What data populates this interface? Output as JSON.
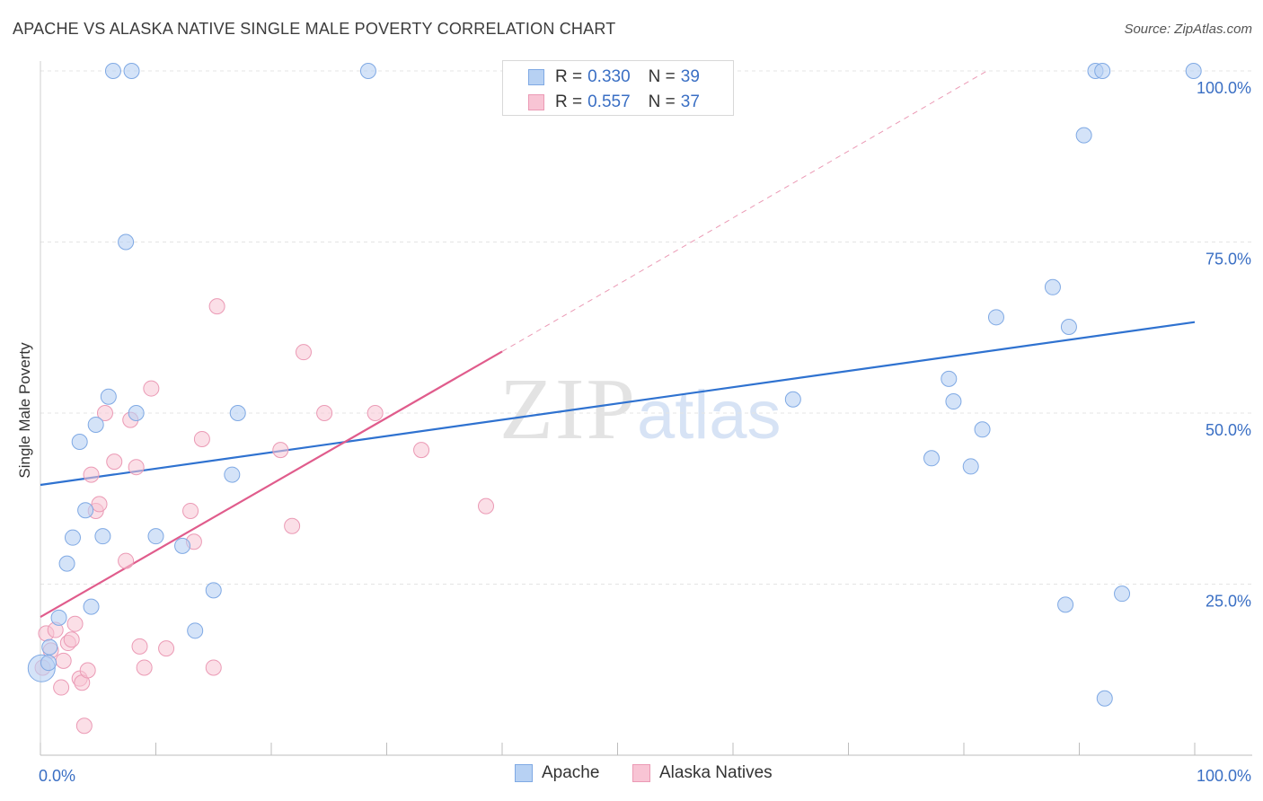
{
  "header": {
    "title": "APACHE VS ALASKA NATIVE SINGLE MALE POVERTY CORRELATION CHART",
    "source": "Source: ZipAtlas.com"
  },
  "watermark": {
    "zip": "ZIP",
    "atlas": "atlas"
  },
  "legend": {
    "apache": {
      "r_label": "R =",
      "r_value": "0.330",
      "n_label": "N =",
      "n_value": "39"
    },
    "alaska": {
      "r_label": "R =",
      "r_value": "0.557",
      "n_label": "N =",
      "n_value": "37"
    }
  },
  "bottom_legend": {
    "apache": "Apache",
    "alaska": "Alaska Natives"
  },
  "colors": {
    "apache_fill": "#b7d1f3",
    "apache_stroke": "#7fa9e4",
    "apache_line": "#2f72d0",
    "alaska_fill": "#f8c4d4",
    "alaska_stroke": "#eb9ab5",
    "alaska_line": "#e05c8c",
    "tick_label": "#3a6fc4",
    "grid": "#e4e4e4"
  },
  "chart_data": {
    "type": "scatter",
    "title": "APACHE VS ALASKA NATIVE SINGLE MALE POVERTY CORRELATION CHART",
    "xlabel": "",
    "ylabel": "Single Male Poverty",
    "xlim": [
      0,
      100
    ],
    "ylim": [
      0,
      100
    ],
    "x_tick_labels": [
      "0.0%",
      "100.0%"
    ],
    "y_ticks": [
      25,
      50,
      75,
      100
    ],
    "y_tick_labels": [
      "25.0%",
      "50.0%",
      "75.0%",
      "100.0%"
    ],
    "grid": true,
    "legend_position": "top-center",
    "series": [
      {
        "name": "Apache",
        "r": 0.33,
        "n": 39,
        "trend": {
          "x": [
            0,
            100
          ],
          "y": [
            39.5,
            63.3
          ]
        },
        "points": [
          {
            "x": 0.1,
            "y": 12.7,
            "big": true
          },
          {
            "x": 0.8,
            "y": 15.8
          },
          {
            "x": 1.6,
            "y": 20.1
          },
          {
            "x": 2.3,
            "y": 28.0
          },
          {
            "x": 2.8,
            "y": 31.8
          },
          {
            "x": 3.4,
            "y": 45.8
          },
          {
            "x": 3.9,
            "y": 35.8
          },
          {
            "x": 4.4,
            "y": 21.7
          },
          {
            "x": 4.8,
            "y": 48.3
          },
          {
            "x": 5.4,
            "y": 32.0
          },
          {
            "x": 5.9,
            "y": 52.4
          },
          {
            "x": 6.3,
            "y": 100.0
          },
          {
            "x": 7.4,
            "y": 75.0
          },
          {
            "x": 7.9,
            "y": 100.0
          },
          {
            "x": 8.3,
            "y": 50.0
          },
          {
            "x": 10.0,
            "y": 32.0
          },
          {
            "x": 12.3,
            "y": 30.6
          },
          {
            "x": 13.4,
            "y": 18.2
          },
          {
            "x": 15.0,
            "y": 24.1
          },
          {
            "x": 16.6,
            "y": 41.0
          },
          {
            "x": 17.1,
            "y": 50.0
          },
          {
            "x": 28.4,
            "y": 100.0
          },
          {
            "x": 65.2,
            "y": 52.0
          },
          {
            "x": 77.2,
            "y": 43.4
          },
          {
            "x": 78.7,
            "y": 55.0
          },
          {
            "x": 79.1,
            "y": 51.7
          },
          {
            "x": 80.6,
            "y": 42.2
          },
          {
            "x": 81.6,
            "y": 47.6
          },
          {
            "x": 82.8,
            "y": 64.0
          },
          {
            "x": 87.7,
            "y": 68.4
          },
          {
            "x": 88.8,
            "y": 22.0
          },
          {
            "x": 89.1,
            "y": 62.6
          },
          {
            "x": 90.4,
            "y": 90.6
          },
          {
            "x": 91.4,
            "y": 100.0
          },
          {
            "x": 92.0,
            "y": 100.0
          },
          {
            "x": 92.2,
            "y": 8.3
          },
          {
            "x": 93.7,
            "y": 23.6
          },
          {
            "x": 99.9,
            "y": 100.0
          },
          {
            "x": 0.7,
            "y": 13.5
          }
        ]
      },
      {
        "name": "Alaska Natives",
        "r": 0.557,
        "n": 37,
        "trend": {
          "x": [
            0,
            40
          ],
          "y": [
            20.2,
            59.0
          ]
        },
        "trend_dashed": {
          "x": [
            40,
            82
          ],
          "y": [
            59.0,
            100.0
          ]
        },
        "points": [
          {
            "x": 0.2,
            "y": 12.8
          },
          {
            "x": 0.5,
            "y": 17.8
          },
          {
            "x": 0.9,
            "y": 15.3
          },
          {
            "x": 1.3,
            "y": 18.3
          },
          {
            "x": 1.8,
            "y": 9.9
          },
          {
            "x": 2.0,
            "y": 13.8
          },
          {
            "x": 2.4,
            "y": 16.4
          },
          {
            "x": 2.7,
            "y": 16.9
          },
          {
            "x": 3.0,
            "y": 19.2
          },
          {
            "x": 3.4,
            "y": 11.2
          },
          {
            "x": 3.6,
            "y": 10.6
          },
          {
            "x": 3.8,
            "y": 4.3
          },
          {
            "x": 4.1,
            "y": 12.4
          },
          {
            "x": 4.4,
            "y": 41.0
          },
          {
            "x": 4.8,
            "y": 35.7
          },
          {
            "x": 5.1,
            "y": 36.7
          },
          {
            "x": 5.6,
            "y": 50.0
          },
          {
            "x": 6.4,
            "y": 42.9
          },
          {
            "x": 7.4,
            "y": 28.4
          },
          {
            "x": 7.8,
            "y": 49.0
          },
          {
            "x": 8.3,
            "y": 42.1
          },
          {
            "x": 8.6,
            "y": 15.9
          },
          {
            "x": 9.0,
            "y": 12.8
          },
          {
            "x": 9.6,
            "y": 53.6
          },
          {
            "x": 10.9,
            "y": 15.6
          },
          {
            "x": 13.0,
            "y": 35.7
          },
          {
            "x": 13.3,
            "y": 31.2
          },
          {
            "x": 14.0,
            "y": 46.2
          },
          {
            "x": 15.0,
            "y": 12.8
          },
          {
            "x": 15.3,
            "y": 65.6
          },
          {
            "x": 20.8,
            "y": 44.6
          },
          {
            "x": 21.8,
            "y": 33.5
          },
          {
            "x": 22.8,
            "y": 58.9
          },
          {
            "x": 24.6,
            "y": 50.0
          },
          {
            "x": 29.0,
            "y": 50.0
          },
          {
            "x": 33.0,
            "y": 44.6
          },
          {
            "x": 38.6,
            "y": 36.4
          }
        ]
      }
    ]
  }
}
